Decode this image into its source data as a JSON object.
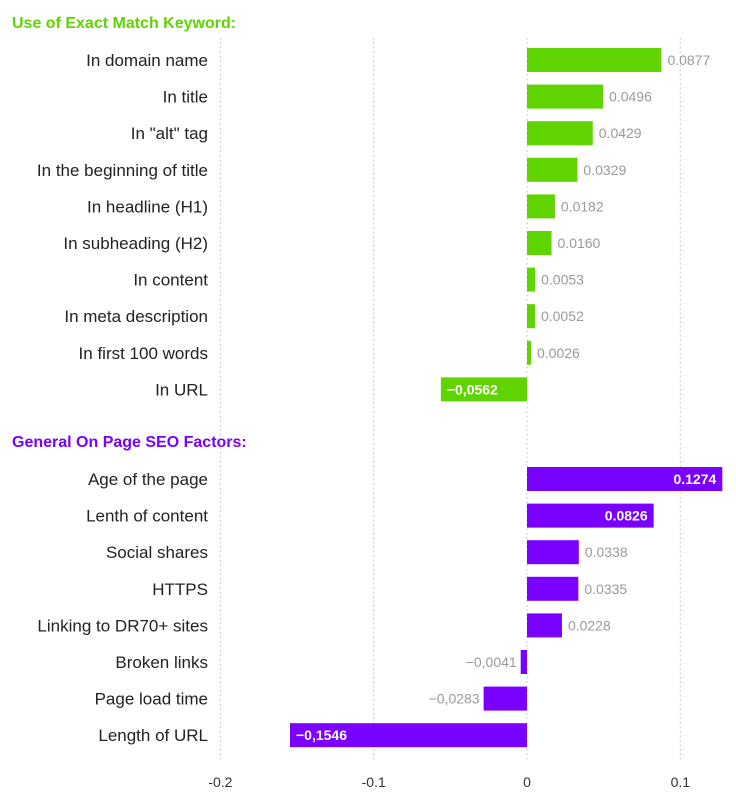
{
  "chart_data": {
    "type": "bar",
    "orientation": "horizontal",
    "grid": true,
    "xlim": [
      -0.2,
      0.13
    ],
    "x_ticks": [
      "-0.2",
      "-0.1",
      "0",
      "0.1"
    ],
    "x_tick_values": [
      -0.2,
      -0.1,
      0,
      0.1
    ],
    "groups": [
      {
        "title": "Use of Exact Match Keyword:",
        "color": "#5fd400",
        "categories": [
          "In domain name",
          "In title",
          "In \"alt\" tag",
          "In the beginning of title",
          "In headline (H1)",
          "In subheading (H2)",
          "In content",
          "In meta description",
          "In first 100 words",
          "In URL"
        ],
        "values": [
          0.0877,
          0.0496,
          0.0429,
          0.0329,
          0.0182,
          0.016,
          0.0053,
          0.0052,
          0.0026,
          -0.0562
        ],
        "labels": [
          "0.0877",
          "0.0496",
          "0.0429",
          "0.0329",
          "0.0182",
          "0.0160",
          "0.0053",
          "0.0052",
          "0.0026",
          "−0,0562"
        ],
        "label_inside": [
          false,
          false,
          false,
          false,
          false,
          false,
          false,
          false,
          false,
          true
        ]
      },
      {
        "title": "General On Page SEO Factors:",
        "color": "#7a00ff",
        "categories": [
          "Age of the page",
          "Lenth of content",
          "Social shares",
          "HTTPS",
          "Linking to DR70+ sites",
          "Broken links",
          "Page load time",
          "Length of URL"
        ],
        "values": [
          0.1274,
          0.0826,
          0.0338,
          0.0335,
          0.0228,
          -0.0041,
          -0.0283,
          -0.1546
        ],
        "labels": [
          "0.1274",
          "0.0826",
          "0.0338",
          "0.0335",
          "0.0228",
          "−0,0041",
          "−0,0283",
          "−0,1546"
        ],
        "label_inside": [
          true,
          true,
          false,
          false,
          false,
          false,
          false,
          true
        ]
      }
    ]
  }
}
